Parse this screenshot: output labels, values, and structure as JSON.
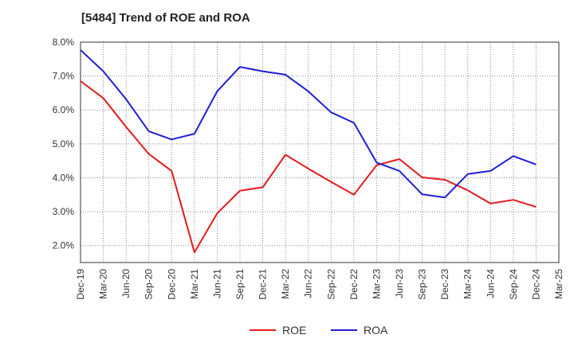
{
  "chart_data": {
    "type": "line",
    "title": "[5484]  Trend of ROE and ROA",
    "xlabel": "",
    "ylabel": "",
    "categories": [
      "Dec-19",
      "Mar-20",
      "Jun-20",
      "Sep-20",
      "Dec-20",
      "Mar-21",
      "Jun-21",
      "Sep-21",
      "Dec-21",
      "Mar-22",
      "Jun-22",
      "Sep-22",
      "Dec-22",
      "Mar-23",
      "Jun-23",
      "Sep-23",
      "Dec-23",
      "Mar-24",
      "Jun-24",
      "Sep-24",
      "Dec-24",
      "Mar-25"
    ],
    "ylim": [
      1.5,
      8.0
    ],
    "yticks": [
      2.0,
      3.0,
      4.0,
      5.0,
      6.0,
      7.0,
      8.0
    ],
    "ytick_labels": [
      "2.0%",
      "3.0%",
      "4.0%",
      "5.0%",
      "6.0%",
      "7.0%",
      "8.0%"
    ],
    "grid": "dotted",
    "legend_position": "bottom-center",
    "series": [
      {
        "name": "ROE",
        "color": "#e31a1c",
        "values": [
          6.85,
          6.35,
          5.5,
          4.7,
          4.2,
          1.8,
          2.95,
          3.62,
          3.72,
          4.68,
          4.27,
          3.88,
          3.5,
          4.37,
          4.55,
          4.01,
          3.94,
          3.63,
          3.24,
          3.35,
          3.14,
          null
        ]
      },
      {
        "name": "ROA",
        "color": "#1f1fd6",
        "values": [
          7.77,
          7.14,
          6.32,
          5.37,
          5.13,
          5.3,
          6.55,
          7.27,
          7.14,
          7.04,
          6.55,
          5.93,
          5.62,
          4.45,
          4.2,
          3.51,
          3.42,
          4.11,
          4.2,
          4.64,
          4.39,
          null
        ]
      }
    ]
  }
}
